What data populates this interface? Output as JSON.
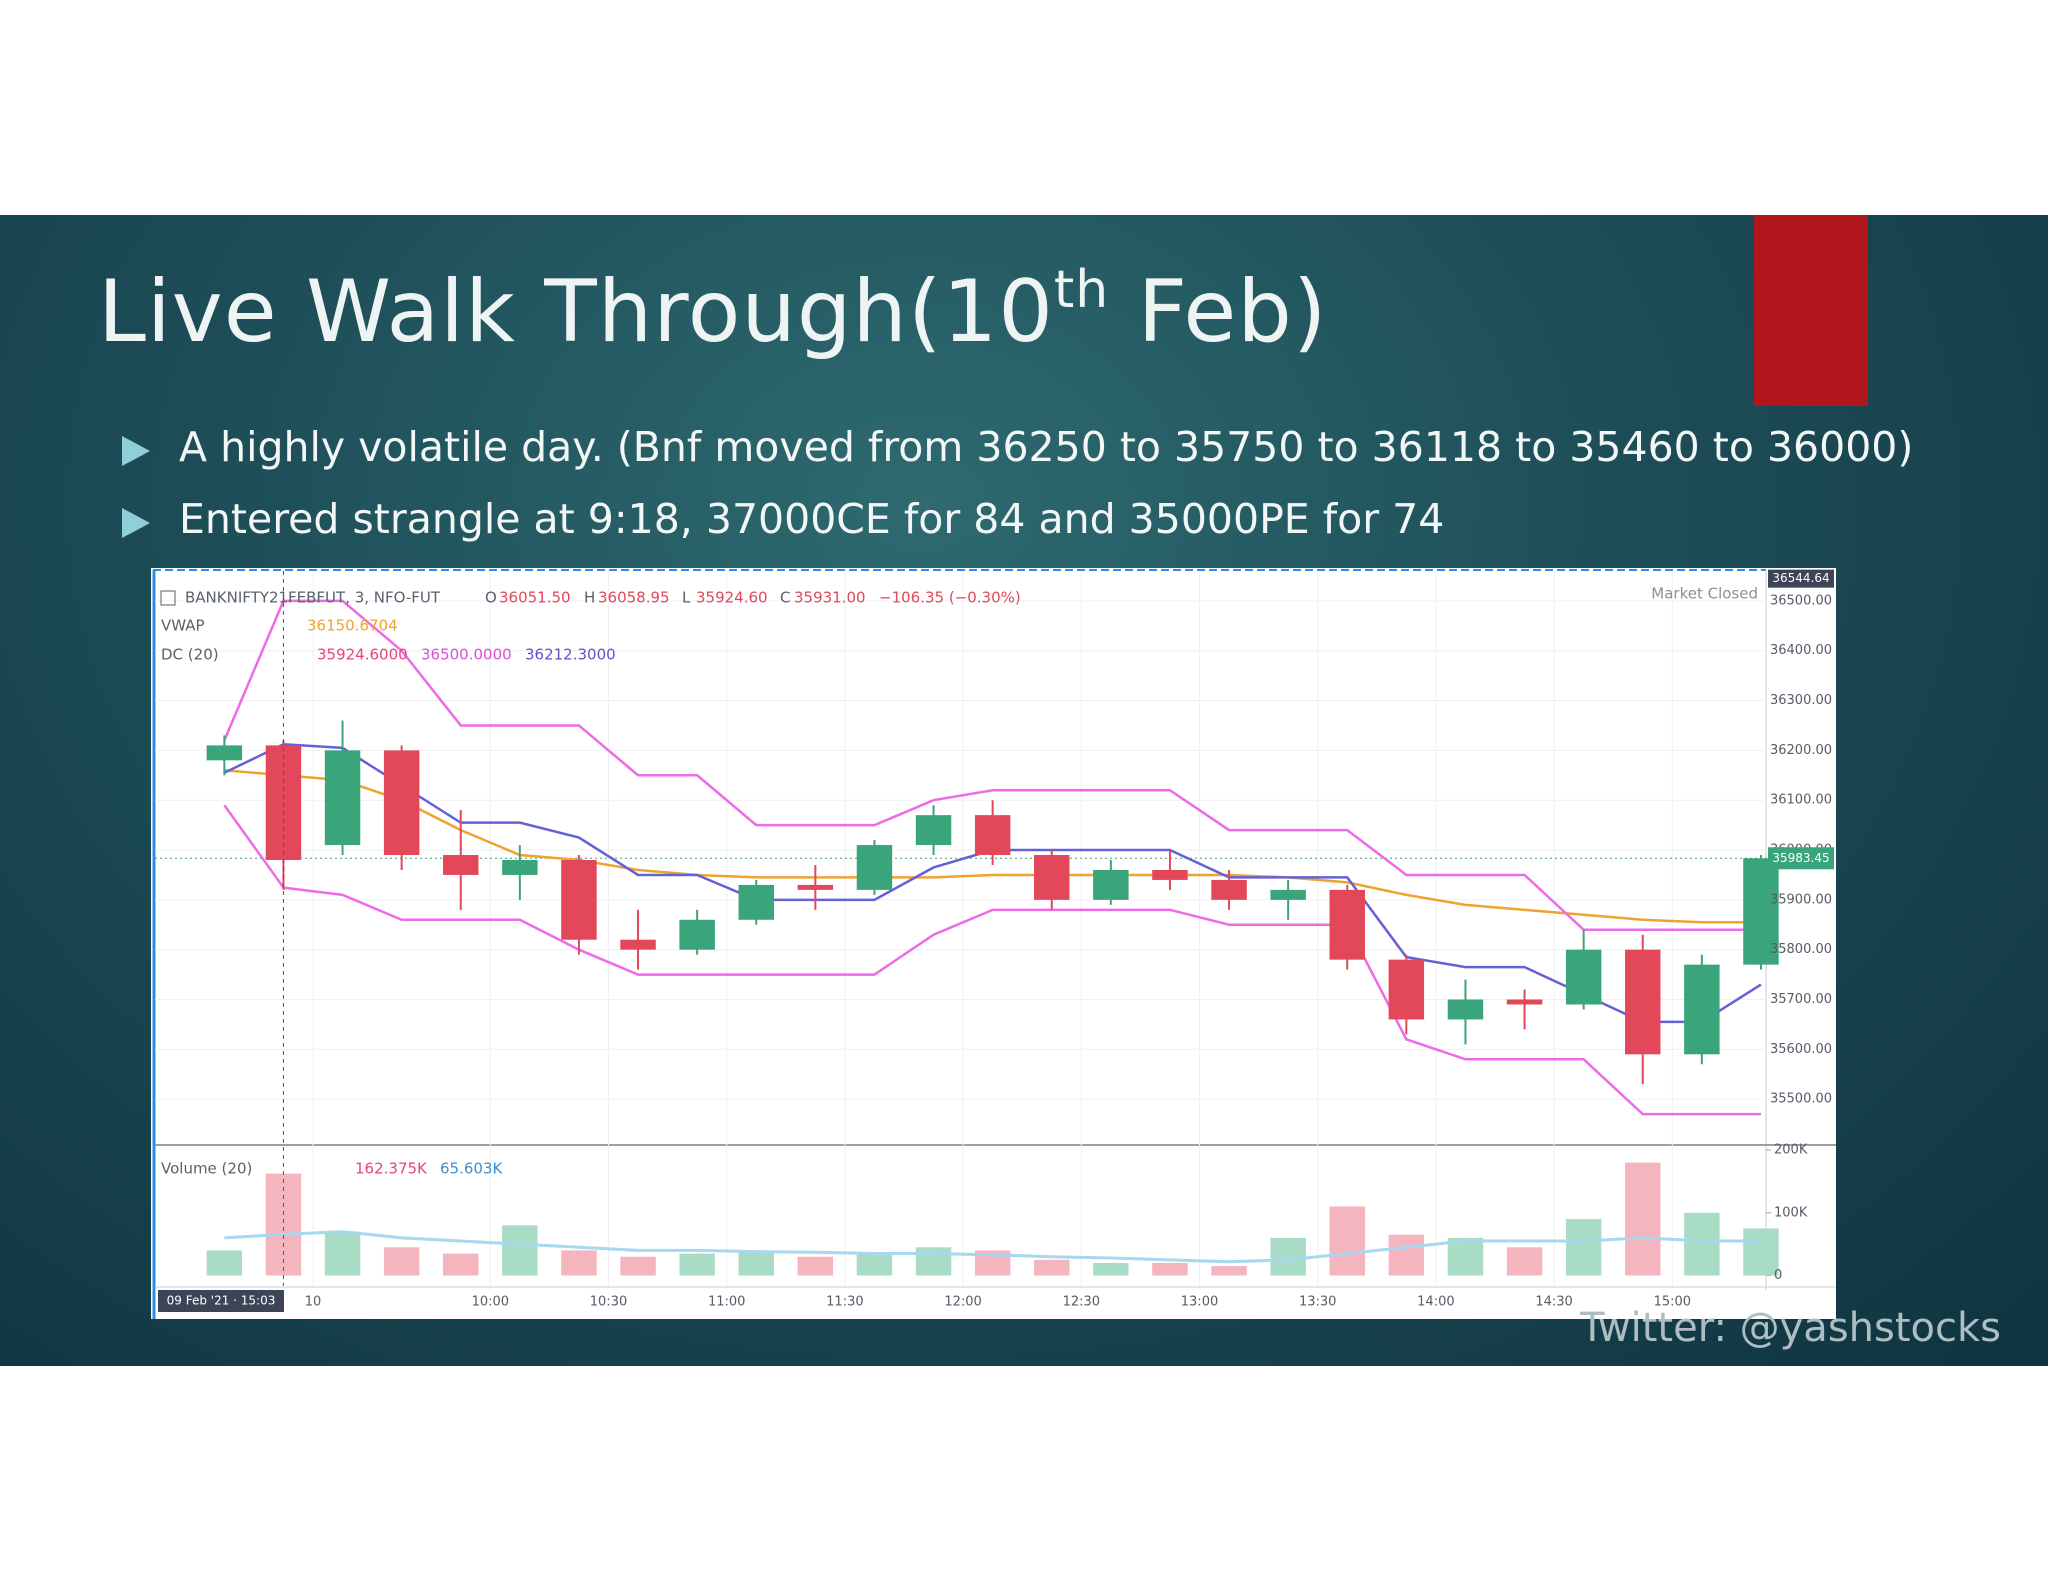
{
  "slide": {
    "title": {
      "text": "Live Walk Through(10",
      "superscript": "th",
      "tail": " Feb)"
    },
    "bullets": [
      "A highly volatile day. (Bnf moved from 36250 to 35750 to 36118 to 35460 to 36000)",
      "Entered strangle at 9:18, 37000CE for 84 and 35000PE for 74"
    ],
    "footer": "Twitter: @yashstocks"
  },
  "chart_data": {
    "type": "candlestick",
    "symbol": "BANKNIFTY21FEBFUT, 3, NFO-FUT",
    "readouts": [
      {
        "name": "O",
        "value": 36051.5,
        "label": "36051.50"
      },
      {
        "name": "H",
        "value": 36058.95,
        "label": "36058.95"
      },
      {
        "name": "L",
        "value": 35924.6,
        "label": "35924.60"
      },
      {
        "name": "C",
        "value": 35931,
        "label": "35931.00"
      }
    ],
    "change": {
      "value": -106.35,
      "label": "−106.35 (−0.30%)"
    },
    "status": "Market Closed",
    "crosshair_label": "09 Feb '21 · 15:03",
    "categories": [
      null,
      null,
      "10",
      null,
      null,
      "10:00",
      null,
      "10:30",
      null,
      "11:00",
      null,
      "11:30",
      null,
      "12:00",
      null,
      "12:30",
      null,
      "13:00",
      null,
      "13:30",
      null,
      "14:00",
      null,
      "14:30",
      null,
      "15:00",
      null
    ],
    "open": [
      36180,
      36210,
      36010,
      36200,
      35990,
      35950,
      35980,
      35820,
      35800,
      35860,
      35930,
      35920,
      36010,
      36070,
      35990,
      35900,
      35960,
      35940,
      35900,
      35920,
      35780,
      35660,
      35700,
      35690,
      35800,
      35590,
      35770
    ],
    "high": [
      36230,
      36220,
      36260,
      36210,
      36080,
      36010,
      35990,
      35880,
      35880,
      35940,
      35970,
      36020,
      36090,
      36100,
      36000,
      35980,
      36000,
      35960,
      35940,
      35930,
      35790,
      35740,
      35720,
      35840,
      35830,
      35790,
      35990
    ],
    "low": [
      36150,
      35920,
      35990,
      35960,
      35880,
      35900,
      35790,
      35760,
      35790,
      35850,
      35880,
      35910,
      35990,
      35970,
      35880,
      35890,
      35920,
      35880,
      35860,
      35760,
      35630,
      35610,
      35640,
      35680,
      35530,
      35570,
      35760
    ],
    "close": [
      36210,
      35980,
      36200,
      35990,
      35950,
      35980,
      35820,
      35800,
      35860,
      35930,
      35920,
      36010,
      36070,
      35990,
      35900,
      35960,
      35940,
      35900,
      35920,
      35780,
      35660,
      35700,
      35690,
      35800,
      35590,
      35770,
      35983.45
    ],
    "up_color": "#3aa57a",
    "down_color": "#e2485a",
    "indicators": [
      {
        "name": "VWAP",
        "readouts": [
          {
            "value": 36150.6704,
            "label": "36150.6704",
            "color": "#f0a22e"
          }
        ],
        "lines": [
          {
            "color": "#f0a22e",
            "values": [
              36160,
              36150,
              36140,
              36100,
              36040,
              35990,
              35980,
              35960,
              35950,
              35945,
              35945,
              35945,
              35945,
              35950,
              35950,
              35950,
              35950,
              35950,
              35945,
              35935,
              35910,
              35890,
              35880,
              35870,
              35860,
              35855,
              35855
            ]
          }
        ]
      },
      {
        "name": "DC (20)",
        "readouts": [
          {
            "value": 35924.6,
            "label": "35924.6000",
            "color": "#e8437a"
          },
          {
            "value": 36500,
            "label": "36500.0000",
            "color": "#d94fd9"
          },
          {
            "value": 36212.3,
            "label": "36212.3000",
            "color": "#5a55c9"
          }
        ],
        "lines": [
          {
            "color": "#ee6ae6",
            "values": [
              36220,
              36500,
              36500,
              36400,
              36250,
              36250,
              36250,
              36150,
              36150,
              36050,
              36050,
              36050,
              36100,
              36120,
              36120,
              36120,
              36120,
              36040,
              36040,
              36040,
              35950,
              35950,
              35950,
              35840,
              35840,
              35840,
              35840
            ]
          },
          {
            "color": "#ee6ae6",
            "values": [
              36090,
              35924.6,
              35910,
              35860,
              35860,
              35860,
              35800,
              35750,
              35750,
              35750,
              35750,
              35750,
              35830,
              35880,
              35880,
              35880,
              35880,
              35850,
              35850,
              35850,
              35620,
              35580,
              35580,
              35580,
              35470,
              35470,
              35470
            ]
          },
          {
            "color": "#6461d6",
            "values": [
              36155,
              36212.3,
              36205,
              36130,
              36055,
              36055,
              36025,
              35950,
              35950,
              35900,
              35900,
              35900,
              35965,
              36000,
              36000,
              36000,
              36000,
              35945,
              35945,
              35945,
              35785,
              35765,
              35765,
              35710,
              35655,
              35655,
              35730
            ]
          }
        ]
      }
    ],
    "ylim": [
      35408,
      36560
    ],
    "yticks": [
      {
        "value": 35500,
        "label": "35500.00"
      },
      {
        "value": 35600,
        "label": "35600.00"
      },
      {
        "value": 35700,
        "label": "35700.00"
      },
      {
        "value": 35800,
        "label": "35800.00"
      },
      {
        "value": 35900,
        "label": "35900.00"
      },
      {
        "value": 36000,
        "label": "36000.00"
      },
      {
        "value": 36100,
        "label": "36100.00"
      },
      {
        "value": 36200,
        "label": "36200.00"
      },
      {
        "value": 36300,
        "label": "36300.00"
      },
      {
        "value": 36400,
        "label": "36400.00"
      },
      {
        "value": 36500,
        "label": "36500.00"
      }
    ],
    "scale_top": 36544.64,
    "last_price": 35983.45,
    "volume": {
      "name": "Volume (20)",
      "readouts": [
        {
          "value": 162375,
          "label": "162.375K",
          "color": "#e8437a"
        },
        {
          "value": 65603,
          "label": "65.603K",
          "color": "#3a8fd6"
        }
      ],
      "values": [
        40000,
        162375,
        70000,
        45000,
        35000,
        80000,
        40000,
        30000,
        35000,
        40000,
        30000,
        35000,
        45000,
        40000,
        25000,
        20000,
        20000,
        15000,
        60000,
        110000,
        65000,
        60000,
        45000,
        90000,
        180000,
        100000,
        75000
      ],
      "ma": [
        60000,
        65603,
        70000,
        60000,
        55000,
        50000,
        45000,
        40000,
        40000,
        38000,
        37000,
        35000,
        35000,
        33000,
        30000,
        28000,
        25000,
        22000,
        25000,
        35000,
        45000,
        55000,
        55000,
        55000,
        60000,
        55000,
        55000
      ],
      "up_color": "#a9dcc5",
      "down_color": "#f5b5bf",
      "ma_color": "#a6d8ef",
      "ylim": [
        -16700,
        208000
      ],
      "yticks": [
        0,
        {
          "value": 100000,
          "label": "100K"
        },
        {
          "value": 200000,
          "label": "200K"
        }
      ]
    }
  }
}
